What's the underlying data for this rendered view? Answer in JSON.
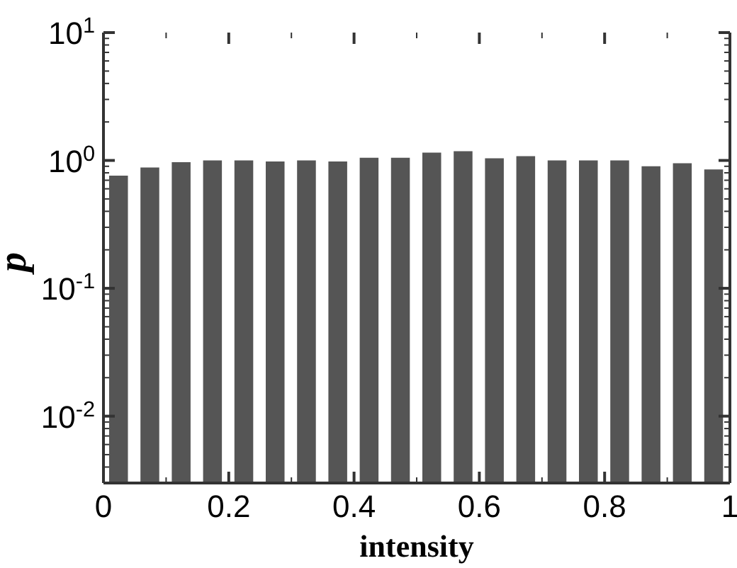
{
  "chart_data": {
    "type": "histogram",
    "xlabel": "intensity",
    "ylabel": "p",
    "bins": [
      0,
      0.05,
      0.1,
      0.15,
      0.2,
      0.25,
      0.3,
      0.35,
      0.4,
      0.45,
      0.5,
      0.55,
      0.6,
      0.65,
      0.7,
      0.75,
      0.8,
      0.85,
      0.9,
      0.95,
      1
    ],
    "values": [
      0.76,
      0.88,
      0.97,
      1.0,
      1.0,
      0.98,
      1.0,
      0.98,
      1.05,
      1.05,
      1.15,
      1.18,
      1.04,
      1.08,
      1.0,
      1.0,
      1.0,
      0.9,
      0.95,
      0.85
    ],
    "color": "#555555",
    "log": "y",
    "grid": false,
    "xlim": [
      0,
      1
    ],
    "xticks": [
      0,
      {
        "value": 0.1,
        "label": null
      },
      0.2,
      {
        "value": 0.3,
        "label": null
      },
      0.4,
      {
        "value": 0.5,
        "label": null
      },
      0.6,
      {
        "value": 0.7,
        "label": null
      },
      0.8,
      {
        "value": 0.9,
        "label": null
      },
      1
    ],
    "ylim": [
      0.003,
      10
    ],
    "yticks": [
      {
        "value": 0.003,
        "label": null
      },
      {
        "value": 0.004,
        "label": null
      },
      {
        "value": 0.005,
        "label": null
      },
      {
        "value": 0.006,
        "label": null
      },
      {
        "value": 0.007,
        "label": null
      },
      {
        "value": 0.008,
        "label": null
      },
      {
        "value": 0.009,
        "label": null
      },
      {
        "value": 0.01,
        "label": "10$^{-2}$"
      },
      {
        "value": 0.02,
        "label": null
      },
      {
        "value": 0.03,
        "label": null
      },
      {
        "value": 0.04,
        "label": null
      },
      {
        "value": 0.05,
        "label": null
      },
      {
        "value": 0.06,
        "label": null
      },
      {
        "value": 0.07,
        "label": null
      },
      {
        "value": 0.08,
        "label": null
      },
      {
        "value": 0.09,
        "label": null
      },
      {
        "value": 0.1,
        "label": "10$^{-1}$"
      },
      {
        "value": 0.2,
        "label": null
      },
      {
        "value": 0.3,
        "label": null
      },
      {
        "value": 0.4,
        "label": null
      },
      {
        "value": 0.5,
        "label": null
      },
      {
        "value": 0.6,
        "label": null
      },
      {
        "value": 0.7,
        "label": null
      },
      {
        "value": 0.8,
        "label": null
      },
      {
        "value": 0.9,
        "label": null
      },
      {
        "value": 1,
        "label": "10$^{0}$"
      },
      {
        "value": 2,
        "label": null
      },
      {
        "value": 3,
        "label": null
      },
      {
        "value": 4,
        "label": null
      },
      {
        "value": 5,
        "label": null
      },
      {
        "value": 6,
        "label": null
      },
      {
        "value": 7,
        "label": null
      },
      {
        "value": 8,
        "label": null
      },
      {
        "value": 9,
        "label": null
      },
      {
        "value": 10,
        "label": "10$^{1}$"
      }
    ]
  }
}
